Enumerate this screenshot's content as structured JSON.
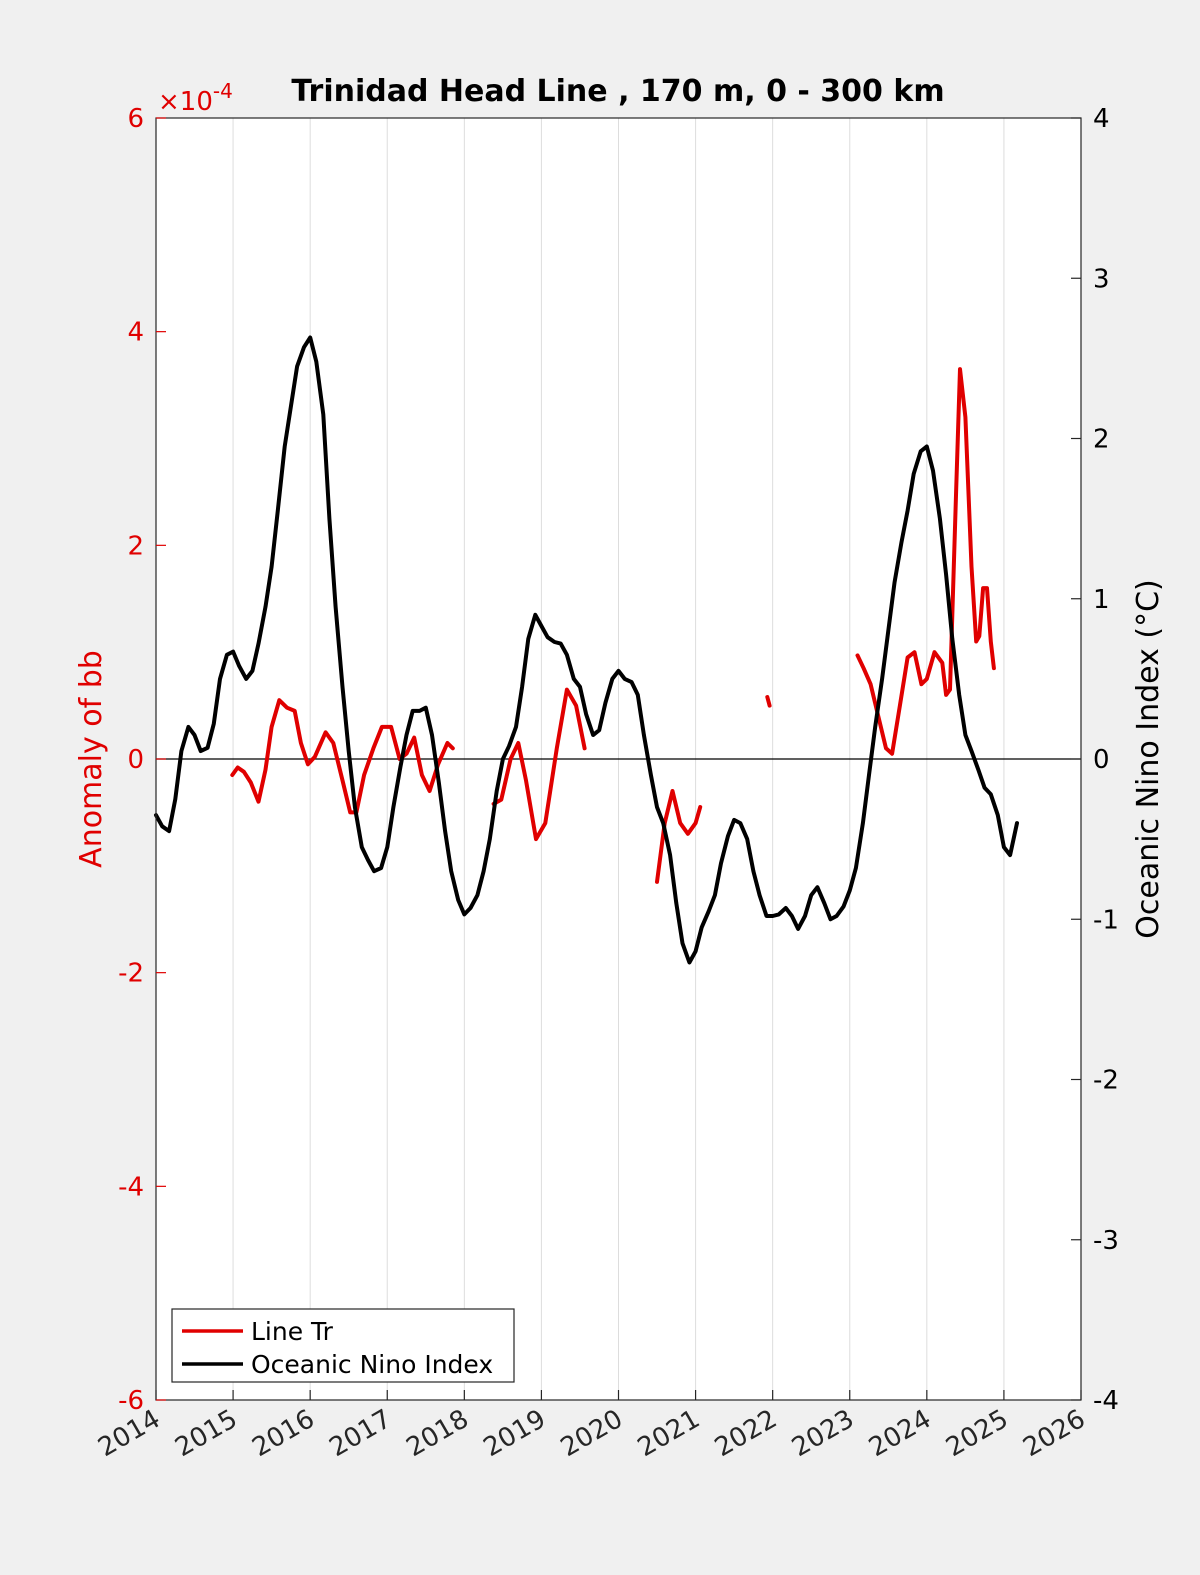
{
  "colors": {
    "background": "#f0f0f0",
    "plot_area": "#ffffff",
    "left_axis": "#e00000",
    "right_axis": "#000000",
    "grid": "#dddddd"
  },
  "chart_data": {
    "type": "line",
    "title": "Trinidad Head Line , 170 m, 0 - 300 km",
    "ylabel_left": "Anomaly of bb",
    "ylabel_right": "Oceanic Nino Index (°C)",
    "y_left_exponent_label": "×10",
    "y_left_exponent_power": "-4",
    "xlim": [
      2014,
      2026
    ],
    "ylim_left": [
      -6,
      6
    ],
    "ylim_right": [
      -4,
      4
    ],
    "x_ticks": [
      "2014",
      "2015",
      "2016",
      "2017",
      "2018",
      "2019",
      "2020",
      "2021",
      "2022",
      "2023",
      "2024",
      "2025",
      "2026"
    ],
    "y_left_ticks": [
      "6",
      "4",
      "2",
      "0",
      "-2",
      "-4",
      "-6"
    ],
    "y_right_ticks": [
      "4",
      "3",
      "2",
      "1",
      "0",
      "-1",
      "-2",
      "-3",
      "-4"
    ],
    "grid": "vertical",
    "zero_line": true,
    "legend": {
      "position": "bottom-left",
      "entries": [
        {
          "label": "Line Tr",
          "color": "#e00000"
        },
        {
          "label": "Oceanic Nino Index",
          "color": "#000000"
        }
      ]
    },
    "series": [
      {
        "name": "Line Tr",
        "axis": "left",
        "color": "#e00000",
        "unit_scale": "x1e-4",
        "segments": [
          [
            [
              2014.99,
              -0.15
            ],
            [
              2015.06,
              -0.08
            ],
            [
              2015.14,
              -0.12
            ],
            [
              2015.23,
              -0.22
            ],
            [
              2015.33,
              -0.4
            ],
            [
              2015.42,
              -0.1
            ],
            [
              2015.5,
              0.3
            ],
            [
              2015.6,
              0.55
            ],
            [
              2015.7,
              0.48
            ],
            [
              2015.8,
              0.45
            ],
            [
              2015.88,
              0.15
            ],
            [
              2015.97,
              -0.05
            ],
            [
              2016.06,
              0.02
            ],
            [
              2016.2,
              0.25
            ],
            [
              2016.3,
              0.15
            ],
            [
              2016.42,
              -0.2
            ],
            [
              2016.52,
              -0.5
            ],
            [
              2016.6,
              -0.5
            ],
            [
              2016.7,
              -0.15
            ],
            [
              2016.82,
              0.1
            ],
            [
              2016.93,
              0.3
            ],
            [
              2017.05,
              0.3
            ],
            [
              2017.16,
              0.0
            ],
            [
              2017.25,
              0.05
            ],
            [
              2017.35,
              0.2
            ],
            [
              2017.45,
              -0.15
            ],
            [
              2017.55,
              -0.3
            ],
            [
              2017.66,
              -0.05
            ],
            [
              2017.78,
              0.15
            ],
            [
              2017.85,
              0.1
            ]
          ],
          [
            [
              2018.38,
              -0.42
            ],
            [
              2018.48,
              -0.38
            ],
            [
              2018.6,
              0.0
            ],
            [
              2018.7,
              0.15
            ],
            [
              2018.8,
              -0.2
            ],
            [
              2018.93,
              -0.75
            ],
            [
              2019.05,
              -0.6
            ],
            [
              2019.2,
              0.1
            ],
            [
              2019.33,
              0.65
            ],
            [
              2019.45,
              0.5
            ],
            [
              2019.56,
              0.1
            ]
          ],
          [
            [
              2020.5,
              -1.15
            ],
            [
              2020.6,
              -0.6
            ],
            [
              2020.7,
              -0.3
            ],
            [
              2020.8,
              -0.6
            ],
            [
              2020.9,
              -0.7
            ],
            [
              2021.0,
              -0.6
            ],
            [
              2021.06,
              -0.45
            ]
          ],
          [
            [
              2021.93,
              0.58
            ],
            [
              2021.96,
              0.5
            ]
          ],
          [
            [
              2023.1,
              0.97
            ],
            [
              2023.18,
              0.85
            ],
            [
              2023.27,
              0.7
            ],
            [
              2023.37,
              0.4
            ],
            [
              2023.47,
              0.1
            ],
            [
              2023.55,
              0.05
            ],
            [
              2023.65,
              0.5
            ],
            [
              2023.75,
              0.95
            ],
            [
              2023.84,
              1.0
            ],
            [
              2023.93,
              0.7
            ],
            [
              2024.0,
              0.75
            ],
            [
              2024.1,
              1.0
            ],
            [
              2024.2,
              0.9
            ],
            [
              2024.25,
              0.6
            ],
            [
              2024.3,
              0.65
            ],
            [
              2024.38,
              2.5
            ],
            [
              2024.43,
              3.65
            ],
            [
              2024.5,
              3.2
            ],
            [
              2024.58,
              1.8
            ],
            [
              2024.64,
              1.1
            ],
            [
              2024.68,
              1.15
            ],
            [
              2024.73,
              1.6
            ],
            [
              2024.78,
              1.6
            ],
            [
              2024.83,
              1.1
            ],
            [
              2024.87,
              0.85
            ]
          ]
        ]
      },
      {
        "name": "Oceanic Nino Index",
        "axis": "right",
        "color": "#000000",
        "segments": [
          [
            [
              2014.0,
              -0.35
            ],
            [
              2014.08,
              -0.42
            ],
            [
              2014.17,
              -0.45
            ],
            [
              2014.25,
              -0.25
            ],
            [
              2014.33,
              0.05
            ],
            [
              2014.42,
              0.2
            ],
            [
              2014.5,
              0.15
            ],
            [
              2014.58,
              0.05
            ],
            [
              2014.67,
              0.07
            ],
            [
              2014.75,
              0.22
            ],
            [
              2014.83,
              0.5
            ],
            [
              2014.92,
              0.65
            ],
            [
              2015.0,
              0.67
            ],
            [
              2015.08,
              0.58
            ],
            [
              2015.17,
              0.5
            ],
            [
              2015.25,
              0.55
            ],
            [
              2015.33,
              0.72
            ],
            [
              2015.42,
              0.95
            ],
            [
              2015.5,
              1.2
            ],
            [
              2015.58,
              1.55
            ],
            [
              2015.67,
              1.95
            ],
            [
              2015.75,
              2.2
            ],
            [
              2015.83,
              2.45
            ],
            [
              2015.92,
              2.57
            ],
            [
              2016.0,
              2.63
            ],
            [
              2016.08,
              2.48
            ],
            [
              2016.17,
              2.15
            ],
            [
              2016.25,
              1.5
            ],
            [
              2016.33,
              0.95
            ],
            [
              2016.42,
              0.45
            ],
            [
              2016.5,
              0.05
            ],
            [
              2016.58,
              -0.3
            ],
            [
              2016.67,
              -0.55
            ],
            [
              2016.75,
              -0.63
            ],
            [
              2016.83,
              -0.7
            ],
            [
              2016.92,
              -0.68
            ],
            [
              2017.0,
              -0.55
            ],
            [
              2017.08,
              -0.3
            ],
            [
              2017.17,
              -0.05
            ],
            [
              2017.25,
              0.15
            ],
            [
              2017.33,
              0.3
            ],
            [
              2017.42,
              0.3
            ],
            [
              2017.5,
              0.32
            ],
            [
              2017.58,
              0.15
            ],
            [
              2017.67,
              -0.15
            ],
            [
              2017.75,
              -0.45
            ],
            [
              2017.83,
              -0.7
            ],
            [
              2017.92,
              -0.88
            ],
            [
              2018.0,
              -0.97
            ],
            [
              2018.08,
              -0.93
            ],
            [
              2018.17,
              -0.85
            ],
            [
              2018.25,
              -0.7
            ],
            [
              2018.33,
              -0.5
            ],
            [
              2018.42,
              -0.2
            ],
            [
              2018.5,
              0.0
            ],
            [
              2018.58,
              0.08
            ],
            [
              2018.67,
              0.2
            ],
            [
              2018.75,
              0.45
            ],
            [
              2018.83,
              0.75
            ],
            [
              2018.92,
              0.9
            ],
            [
              2019.0,
              0.83
            ],
            [
              2019.08,
              0.76
            ],
            [
              2019.17,
              0.73
            ],
            [
              2019.25,
              0.72
            ],
            [
              2019.33,
              0.65
            ],
            [
              2019.42,
              0.5
            ],
            [
              2019.5,
              0.45
            ],
            [
              2019.58,
              0.28
            ],
            [
              2019.67,
              0.15
            ],
            [
              2019.75,
              0.18
            ],
            [
              2019.83,
              0.35
            ],
            [
              2019.92,
              0.5
            ],
            [
              2020.0,
              0.55
            ],
            [
              2020.08,
              0.5
            ],
            [
              2020.17,
              0.48
            ],
            [
              2020.25,
              0.4
            ],
            [
              2020.33,
              0.15
            ],
            [
              2020.42,
              -0.1
            ],
            [
              2020.5,
              -0.3
            ],
            [
              2020.58,
              -0.4
            ],
            [
              2020.67,
              -0.6
            ],
            [
              2020.75,
              -0.9
            ],
            [
              2020.83,
              -1.15
            ],
            [
              2020.92,
              -1.27
            ],
            [
              2021.0,
              -1.2
            ],
            [
              2021.08,
              -1.05
            ],
            [
              2021.17,
              -0.95
            ],
            [
              2021.25,
              -0.85
            ],
            [
              2021.33,
              -0.65
            ],
            [
              2021.42,
              -0.48
            ],
            [
              2021.5,
              -0.38
            ],
            [
              2021.58,
              -0.4
            ],
            [
              2021.67,
              -0.5
            ],
            [
              2021.75,
              -0.7
            ],
            [
              2021.83,
              -0.85
            ],
            [
              2021.92,
              -0.98
            ],
            [
              2022.0,
              -0.98
            ],
            [
              2022.08,
              -0.97
            ],
            [
              2022.17,
              -0.93
            ],
            [
              2022.25,
              -0.98
            ],
            [
              2022.33,
              -1.06
            ],
            [
              2022.42,
              -0.98
            ],
            [
              2022.5,
              -0.85
            ],
            [
              2022.58,
              -0.8
            ],
            [
              2022.67,
              -0.9
            ],
            [
              2022.75,
              -1.0
            ],
            [
              2022.83,
              -0.98
            ],
            [
              2022.92,
              -0.92
            ],
            [
              2023.0,
              -0.82
            ],
            [
              2023.08,
              -0.68
            ],
            [
              2023.17,
              -0.4
            ],
            [
              2023.25,
              -0.1
            ],
            [
              2023.33,
              0.2
            ],
            [
              2023.42,
              0.5
            ],
            [
              2023.5,
              0.8
            ],
            [
              2023.58,
              1.1
            ],
            [
              2023.67,
              1.35
            ],
            [
              2023.75,
              1.55
            ],
            [
              2023.83,
              1.78
            ],
            [
              2023.92,
              1.92
            ],
            [
              2024.0,
              1.95
            ],
            [
              2024.08,
              1.8
            ],
            [
              2024.17,
              1.5
            ],
            [
              2024.25,
              1.15
            ],
            [
              2024.33,
              0.75
            ],
            [
              2024.42,
              0.4
            ],
            [
              2024.5,
              0.15
            ],
            [
              2024.58,
              0.05
            ],
            [
              2024.67,
              -0.07
            ],
            [
              2024.75,
              -0.18
            ],
            [
              2024.83,
              -0.22
            ],
            [
              2024.92,
              -0.35
            ],
            [
              2025.0,
              -0.55
            ],
            [
              2025.08,
              -0.6
            ],
            [
              2025.17,
              -0.4
            ]
          ]
        ]
      }
    ]
  }
}
